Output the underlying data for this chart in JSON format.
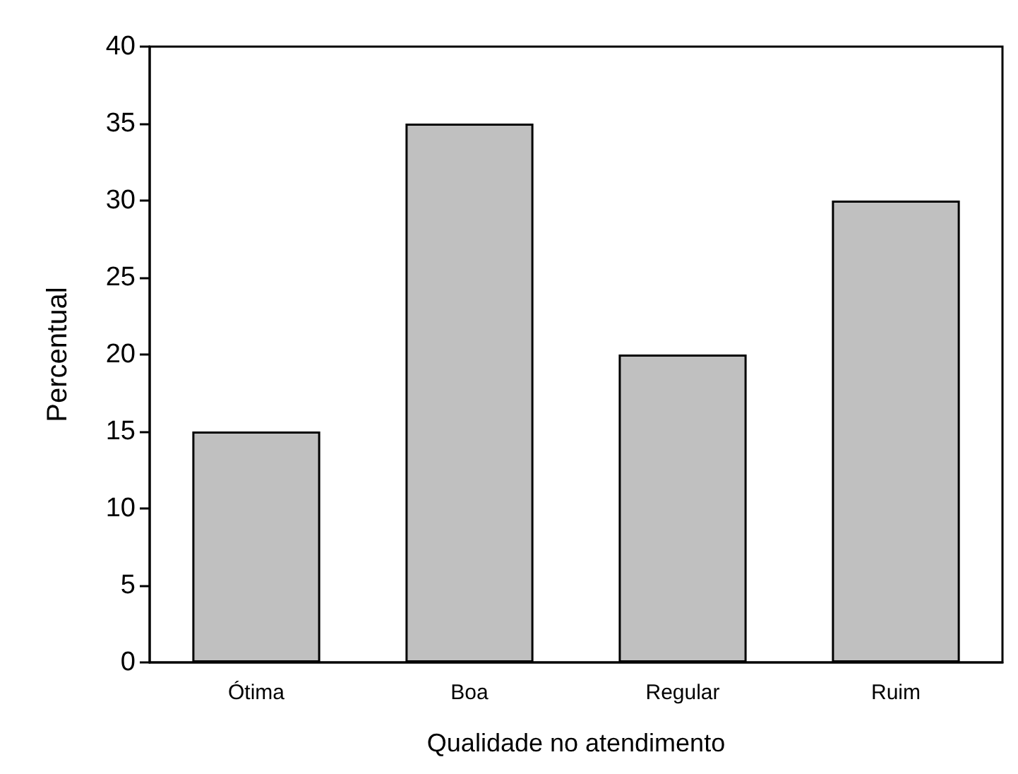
{
  "chart_data": {
    "type": "bar",
    "xlabel": "Qualidade no atendimento",
    "ylabel": "Percentual",
    "categories": [
      "Ótima",
      "Boa",
      "Regular",
      "Ruim"
    ],
    "values": [
      15,
      35,
      20,
      30
    ],
    "color": "#c0c0c0",
    "ylim": [
      0,
      40
    ],
    "yticks": [
      0,
      5,
      10,
      15,
      20,
      25,
      30,
      35,
      40
    ],
    "grid": false
  }
}
